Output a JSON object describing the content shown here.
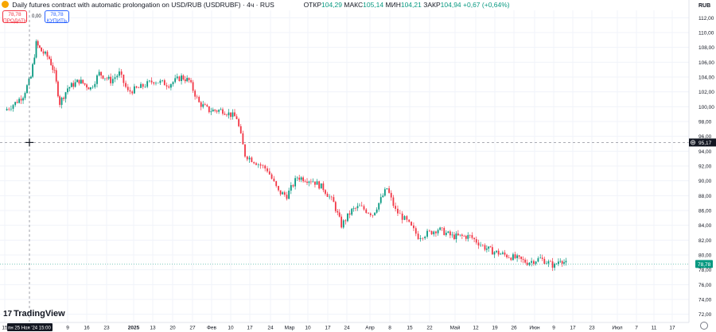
{
  "header": {
    "title": "Daily futures contract with automatic prolongation on USD/RUB (USDRUBF) · 4ч · RUS",
    "ohlc": [
      {
        "label": "ОТКР",
        "value": "104,29"
      },
      {
        "label": "МАКС",
        "value": "105,14"
      },
      {
        "label": "МИН",
        "value": "104,21"
      },
      {
        "label": "ЗАКР",
        "value": "104,94"
      }
    ],
    "change": "+0,67 (+0,64%)"
  },
  "trade": {
    "sell_price": "78,78",
    "sell_label": "ПРОДАТЬ",
    "spread": "0,00",
    "buy_price": "78,78",
    "buy_label": "КУПИТЬ"
  },
  "brand": {
    "name": "TradingView"
  },
  "colors": {
    "up": "#089981",
    "down": "#f23645",
    "grid": "#f0f3fa",
    "axis_text": "#131722"
  },
  "chart_data": {
    "type": "candlestick",
    "currency": "RUB",
    "ylim": [
      71,
      113
    ],
    "y_ticks": [
      "72,00",
      "74,00",
      "76,00",
      "78,00",
      "80,00",
      "82,00",
      "84,00",
      "86,00",
      "88,00",
      "90,00",
      "92,00",
      "94,00",
      "96,00",
      "98,00",
      "100,00",
      "102,00",
      "104,00",
      "106,00",
      "108,00",
      "110,00",
      "112,00"
    ],
    "x_ticks": [
      "15",
      "пн 25 Ноя '24  15:00",
      "9",
      "16",
      "23",
      "2025",
      "13",
      "20",
      "27",
      "Фев",
      "10",
      "17",
      "24",
      "Мар",
      "10",
      "17",
      "24",
      "Апр",
      "8",
      "15",
      "22",
      "Май",
      "12",
      "19",
      "26",
      "Июн",
      "9",
      "17",
      "23",
      "Июл",
      "7",
      "11",
      "17",
      "23"
    ],
    "last_price": "78,78",
    "crosshair_price": "95,17",
    "crosshair_time": "пн 25 Ноя '24  15:00",
    "close_path": [
      {
        "date": "2024-11-15",
        "close": 99.5
      },
      {
        "date": "2024-11-19",
        "close": 100.5
      },
      {
        "date": "2024-11-22",
        "close": 101.5
      },
      {
        "date": "2024-11-25",
        "close": 104.0
      },
      {
        "date": "2024-11-27",
        "close": 108.5
      },
      {
        "date": "2024-11-29",
        "close": 107.5
      },
      {
        "date": "2024-12-02",
        "close": 106.5
      },
      {
        "date": "2024-12-04",
        "close": 104.5
      },
      {
        "date": "2024-12-06",
        "close": 100.5
      },
      {
        "date": "2024-12-09",
        "close": 102.5
      },
      {
        "date": "2024-12-13",
        "close": 103.5
      },
      {
        "date": "2024-12-17",
        "close": 102.5
      },
      {
        "date": "2024-12-20",
        "close": 104.5
      },
      {
        "date": "2024-12-24",
        "close": 103.5
      },
      {
        "date": "2024-12-27",
        "close": 104.5
      },
      {
        "date": "2024-12-30",
        "close": 102.0
      },
      {
        "date": "2025-01-03",
        "close": 102.5
      },
      {
        "date": "2025-01-09",
        "close": 103.5
      },
      {
        "date": "2025-01-15",
        "close": 103.0
      },
      {
        "date": "2025-01-20",
        "close": 104.0
      },
      {
        "date": "2025-01-23",
        "close": 103.5
      },
      {
        "date": "2025-01-27",
        "close": 100.5
      },
      {
        "date": "2025-01-31",
        "close": 99.5
      },
      {
        "date": "2025-02-05",
        "close": 99.5
      },
      {
        "date": "2025-02-10",
        "close": 98.5
      },
      {
        "date": "2025-02-13",
        "close": 93.5
      },
      {
        "date": "2025-02-17",
        "close": 92.5
      },
      {
        "date": "2025-02-21",
        "close": 91.5
      },
      {
        "date": "2025-02-25",
        "close": 88.5
      },
      {
        "date": "2025-02-28",
        "close": 88.0
      },
      {
        "date": "2025-03-04",
        "close": 90.5
      },
      {
        "date": "2025-03-10",
        "close": 90.0
      },
      {
        "date": "2025-03-14",
        "close": 89.0
      },
      {
        "date": "2025-03-18",
        "close": 87.0
      },
      {
        "date": "2025-03-21",
        "close": 84.0
      },
      {
        "date": "2025-03-25",
        "close": 86.0
      },
      {
        "date": "2025-03-28",
        "close": 86.5
      },
      {
        "date": "2025-04-02",
        "close": 85.5
      },
      {
        "date": "2025-04-07",
        "close": 89.0
      },
      {
        "date": "2025-04-10",
        "close": 86.0
      },
      {
        "date": "2025-04-14",
        "close": 84.5
      },
      {
        "date": "2025-04-18",
        "close": 82.5
      },
      {
        "date": "2025-04-22",
        "close": 83.0
      },
      {
        "date": "2025-04-25",
        "close": 83.5
      },
      {
        "date": "2025-04-30",
        "close": 82.5
      },
      {
        "date": "2025-05-07",
        "close": 82.5
      },
      {
        "date": "2025-05-13",
        "close": 81.0
      },
      {
        "date": "2025-05-16",
        "close": 80.5
      },
      {
        "date": "2025-05-21",
        "close": 80.0
      },
      {
        "date": "2025-05-26",
        "close": 79.5
      },
      {
        "date": "2025-05-30",
        "close": 79.0
      },
      {
        "date": "2025-06-04",
        "close": 79.5
      },
      {
        "date": "2025-06-09",
        "close": 78.5
      },
      {
        "date": "2025-06-11",
        "close": 79.5
      },
      {
        "date": "2025-06-13",
        "close": 78.8
      }
    ]
  }
}
